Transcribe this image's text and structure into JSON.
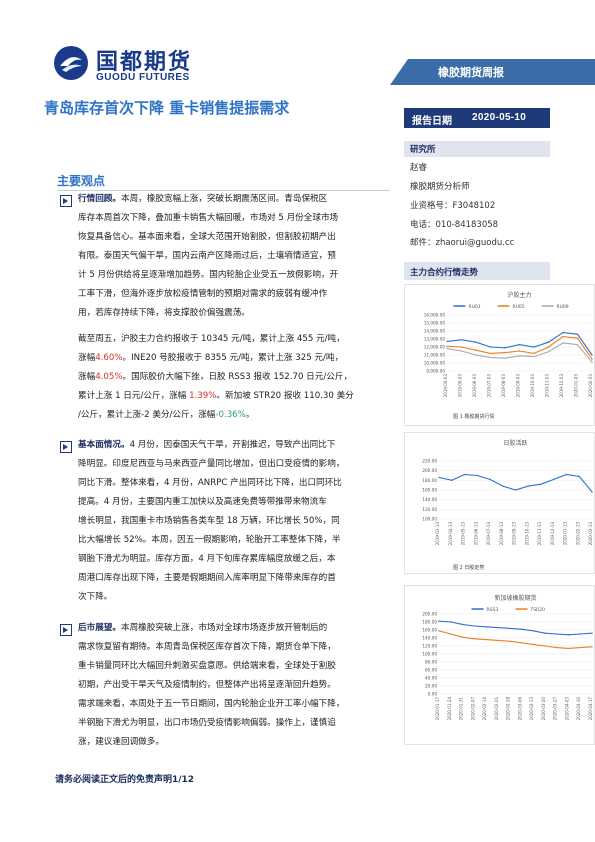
{
  "header": {
    "logo_cn": "国都期货",
    "logo_en": "GUODU FUTURES",
    "report_type": "橡胶期货周报",
    "headline": "青岛库存首次下降 重卡销售提振需求"
  },
  "report_date": {
    "label": "报告日期",
    "value": "2020-05-10"
  },
  "research": {
    "heading": "研究所",
    "lines": [
      "赵睿",
      "橡胶期货分析师",
      "业资格号：F3048102",
      "电话：010-84183058",
      "邮件：zhaorui@guodu.cc"
    ]
  },
  "trend_section": {
    "title": "主力合约行情走势"
  },
  "key_points": {
    "title": "主要观点"
  },
  "paragraphs": [
    {
      "lines": [
        [
          {
            "t": "行情回顾。",
            "c": "lbl"
          },
          {
            "t": "本周，橡胶宽幅上涨，突破长期震荡区间。青岛保税区"
          }
        ],
        [
          {
            "t": "库存本周首次下降，叠加重卡销售大幅回暖，市场对 5 月份全球市场"
          }
        ],
        [
          {
            "t": "恢复具备信心。基本面来看，全球大范围开始割胶，但割胶初期产出"
          }
        ],
        [
          {
            "t": "有限。泰国天气偏干旱，国内云南产区降雨过后，土壤墒情适宜，预"
          }
        ],
        [
          {
            "t": "计 5 月份供给将呈逐渐增加趋势。国内轮胎企业受五一放假影响，开"
          }
        ],
        [
          {
            "t": "工率下滑，但海外逐步放松疫情管制的预期对需求的疲弱有缓冲作"
          }
        ],
        [
          {
            "t": "用，若库存持续下降，将支撑胶价偏强震荡。"
          }
        ]
      ]
    },
    {
      "lines": [
        [
          {
            "t": "截至周五，沪胶主力合约报收于 10345 元/吨，累计上涨 455 元/吨，"
          }
        ],
        [
          {
            "t": "涨幅"
          },
          {
            "t": "4.60%",
            "c": "neg"
          },
          {
            "t": "。INE20 号胶报收于 8355 元/吨，累计上涨 325 元/吨，"
          }
        ],
        [
          {
            "t": "涨幅"
          },
          {
            "t": "4.05%",
            "c": "neg"
          },
          {
            "t": "。国际胶价大幅下挫，日胶 RSS3 报收 152.70 日元/公斤，"
          }
        ],
        [
          {
            "t": "累计上涨 1 日元/公斤，涨幅 "
          },
          {
            "t": "1.39%",
            "c": "neg"
          },
          {
            "t": "。新加坡 STR20 报收 110.30 美分"
          }
        ],
        [
          {
            "t": "/公斤，累计上涨-2 美分/公斤，涨幅"
          },
          {
            "t": "-0.36%",
            "c": "pos"
          },
          {
            "t": "。"
          }
        ]
      ]
    },
    {
      "lines": [
        [
          {
            "t": "基本面情况。",
            "c": "lbl"
          },
          {
            "t": "4 月份，因泰国天气干旱，开割推迟，导致产出同比下"
          }
        ],
        [
          {
            "t": "降明显。印度尼西亚与马来西亚产量同比增加，但出口受疫情的影响，"
          }
        ],
        [
          {
            "t": "同比下滑。整体来看，4 月份，ANRPC 产出同环比下降，出口同环比"
          }
        ],
        [
          {
            "t": "提高。4 月份，主要国内重工加快以及高速免费等带推带来物流车"
          }
        ],
        [
          {
            "t": "增长明显，我国重卡市场销售各类车型 18 万辆，环比增长 50%，同"
          }
        ],
        [
          {
            "t": "比大幅增长 52%。本周，因五一假期影响，轮胎开工率整体下降，半"
          }
        ],
        [
          {
            "t": "钢胎下滑尤为明显。库存方面，4 月下旬库存累库幅度放缓之后，本"
          }
        ],
        [
          {
            "t": "周港口库存出现下降，主要是假期期间入库率明显下降带来库存的首"
          }
        ],
        [
          {
            "t": "次下降。"
          }
        ]
      ]
    },
    {
      "lines": [
        [
          {
            "t": "后市展望。",
            "c": "lbl"
          },
          {
            "t": "本周橡胶突破上涨，市场对全球市场逐步放开管制后的"
          }
        ],
        [
          {
            "t": "需求恢复留有期待。本周青岛保税区库存首次下降，期货仓单下降，"
          }
        ],
        [
          {
            "t": "重卡销量同环比大幅回升刺激买盘意愿。供给端来看，全球处于割胶"
          }
        ],
        [
          {
            "t": "初期，产出受干旱天气及疫情制约，但整体产出将呈逐渐回升趋势。"
          }
        ],
        [
          {
            "t": "需求端来看，本周处于五一节日期间，国内轮胎企业开工率小幅下降，"
          }
        ],
        [
          {
            "t": "半钢胎下滑尤为明显，出口市场仍受疫情影响偏弱。操作上，谨慎追"
          }
        ],
        [
          {
            "t": "涨，建议逢回调做多。"
          }
        ]
      ]
    }
  ],
  "footer": "请务必阅读正文后的免责声明1/12",
  "colors": {
    "brand_blue": "#1f3a78",
    "headline_blue": "#2f73c7",
    "section_bg": "#dfe4ef",
    "down_red": "#d0332b",
    "up_green": "#2a9a6a"
  },
  "chart_data": [
    {
      "type": "line",
      "title": "沪胶主力",
      "caption": "图 1 橡胶期货行情",
      "ylim": [
        9000,
        16000
      ],
      "yticks": [
        "16,000.00",
        "15,000.00",
        "14,000.00",
        "13,000.00",
        "12,000.00",
        "11,000.00",
        "10,000.00",
        "9,000.00"
      ],
      "x": [
        "2019-04-03",
        "2019-05-03",
        "2019-06-03",
        "2019-07-03",
        "2019-08-03",
        "2019-09-03",
        "2019-10-03",
        "2019-11-03",
        "2019-12-03",
        "2020-01-03",
        "2020-02-03"
      ],
      "series": [
        {
          "name": "RU01",
          "color": "#2e6fd0",
          "values": [
            12700,
            12900,
            12600,
            12000,
            11900,
            12300,
            12000,
            12600,
            13800,
            13600,
            11000
          ]
        },
        {
          "name": "RU05",
          "color": "#e8801f",
          "values": [
            12100,
            12000,
            11600,
            11200,
            11300,
            11500,
            11200,
            12000,
            13300,
            13100,
            10500
          ]
        },
        {
          "name": "RU09",
          "color": "#a8a8a8",
          "values": [
            11800,
            11500,
            11000,
            10700,
            10600,
            10900,
            10800,
            11400,
            12500,
            12300,
            10100
          ]
        }
      ]
    },
    {
      "type": "line",
      "title": "日胶活跃",
      "caption": "图 2 日胶走势",
      "ylim": [
        100,
        220
      ],
      "yticks": [
        "220.00",
        "200.00",
        "180.00",
        "160.00",
        "140.00",
        "120.00",
        "100.00"
      ],
      "x": [
        "2019-03-13",
        "2019-04-13",
        "2019-05-13",
        "2019-06-13",
        "2019-07-13",
        "2019-08-13",
        "2019-09-13",
        "2019-10-13",
        "2019-11-13",
        "2019-12-13",
        "2020-01-13",
        "2020-02-13",
        "2020-03-13"
      ],
      "series": [
        {
          "name": "",
          "color": "#2e6fd0",
          "values": [
            186,
            180,
            192,
            190,
            182,
            168,
            160,
            168,
            172,
            182,
            192,
            188,
            156
          ]
        }
      ]
    },
    {
      "type": "line",
      "title": "新加坡橡胶期货",
      "caption": "",
      "ylim": [
        0,
        200
      ],
      "yticks": [
        "200.00",
        "180.00",
        "160.00",
        "140.00",
        "120.00",
        "100.00",
        "80.00",
        "60.00",
        "40.00",
        "20.00",
        "0.00"
      ],
      "x": [
        "2020-01-17",
        "2020-01-24",
        "2020-01-31",
        "2020-02-07",
        "2020-02-14",
        "2020-02-21",
        "2020-02-28",
        "2020-03-06",
        "2020-03-13",
        "2020-03-20",
        "2020-03-27",
        "2020-04-03",
        "2020-04-10",
        "2020-04-17"
      ],
      "series": [
        {
          "name": "RSS3",
          "color": "#2e6fd0",
          "values": [
            182,
            180,
            174,
            170,
            168,
            166,
            164,
            162,
            158,
            152,
            150,
            148,
            150,
            152
          ]
        },
        {
          "name": "TSR20",
          "color": "#e8801f",
          "values": [
            158,
            150,
            142,
            138,
            136,
            134,
            132,
            128,
            124,
            120,
            116,
            114,
            116,
            118
          ]
        }
      ]
    }
  ]
}
